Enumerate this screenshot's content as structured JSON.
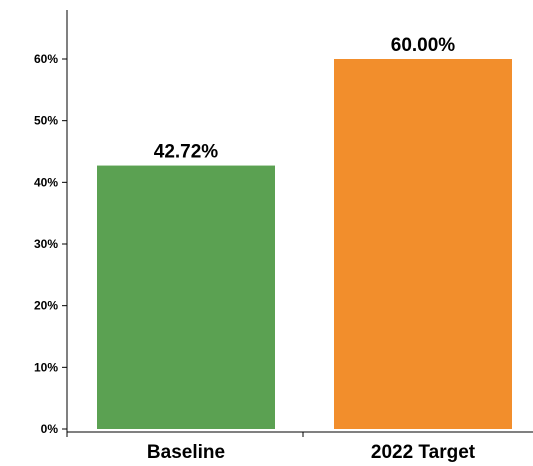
{
  "chart_data": {
    "type": "bar",
    "categories": [
      "Baseline",
      "2022 Target"
    ],
    "values": [
      42.72,
      60.0
    ],
    "value_labels": [
      "42.72%",
      "60.00%"
    ],
    "colors": [
      "#5ba152",
      "#f28e2c"
    ],
    "ylim": [
      0,
      60
    ],
    "yticks": [
      0,
      10,
      20,
      30,
      40,
      50,
      60
    ],
    "ytick_labels": [
      "0%",
      "10%",
      "20%",
      "30%",
      "40%",
      "50%",
      "60%"
    ],
    "grid": false,
    "title": "",
    "xlabel": "",
    "ylabel": ""
  }
}
